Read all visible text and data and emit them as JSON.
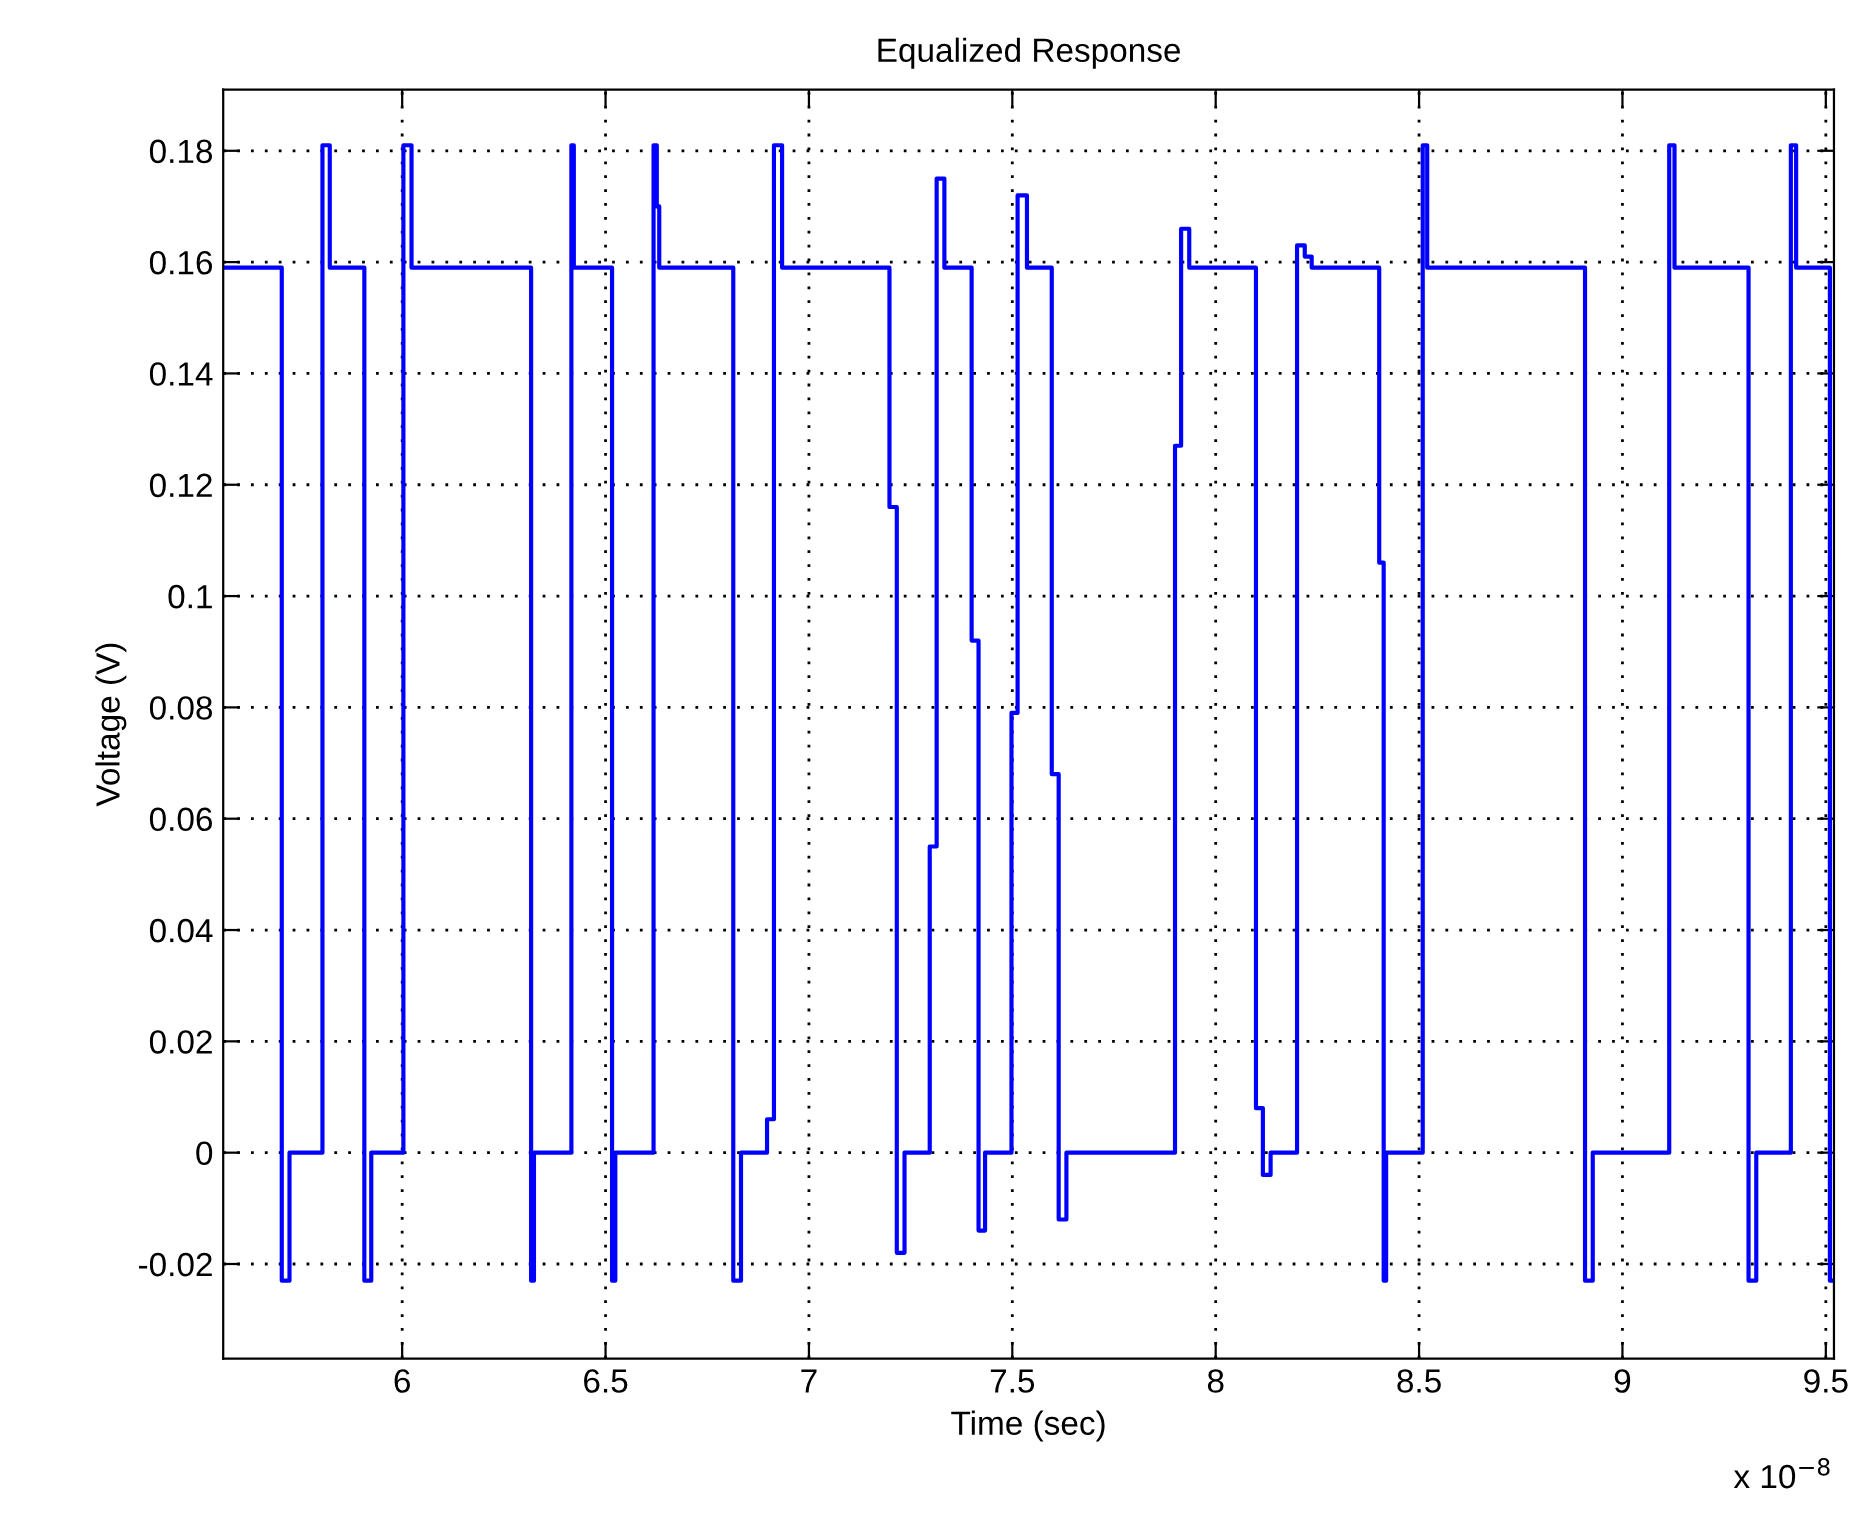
{
  "chart_data": {
    "type": "step",
    "title": "Equalized Response",
    "xlabel": "Time (sec)",
    "ylabel": "Voltage (V)",
    "annotations": [
      "x 10$^{−8}$"
    ],
    "x": [
      5.56,
      5.704,
      5.723,
      5.804,
      5.822,
      5.907,
      5.924,
      6.003,
      6.023,
      6.317,
      6.324,
      6.416,
      6.422,
      6.516,
      6.524,
      6.618,
      6.626,
      6.632,
      6.814,
      6.833,
      6.897,
      6.914,
      6.934,
      7.198,
      7.216,
      7.235,
      7.297,
      7.314,
      7.333,
      7.4,
      7.417,
      7.433,
      7.498,
      7.513,
      7.536,
      7.597,
      7.614,
      7.633,
      7.9,
      7.915,
      7.935,
      8.099,
      8.116,
      8.135,
      8.2,
      8.219,
      8.236,
      8.402,
      8.413,
      8.419,
      8.509,
      8.52,
      8.908,
      8.927,
      9.115,
      9.128,
      9.31,
      9.329,
      9.414,
      9.427,
      9.51,
      9.52
    ],
    "series": [
      {
        "color": "#0000ff",
        "values": [
          0.159,
          -0.023,
          0,
          0.181,
          0.159,
          -0.023,
          0,
          0.181,
          0.159,
          -0.023,
          0,
          0.181,
          0.159,
          -0.023,
          0,
          0.181,
          0.17,
          0.159,
          -0.023,
          0,
          0.006,
          0.181,
          0.159,
          0.116,
          -0.018,
          0,
          0.055,
          0.175,
          0.159,
          0.092,
          -0.014,
          0,
          0.079,
          0.172,
          0.159,
          0.068,
          -0.012,
          0,
          0.127,
          0.166,
          0.159,
          0.008,
          -0.004,
          0,
          0.163,
          0.161,
          0.159,
          0.106,
          -0.023,
          0,
          0.181,
          0.159,
          -0.023,
          0,
          0.181,
          0.159,
          -0.023,
          0,
          0.181,
          0.159,
          -0.023,
          -0.023
        ]
      }
    ],
    "xlim": [
      5.56,
      9.52
    ],
    "ylim": [
      -0.037,
      0.191
    ],
    "xticks": [
      6,
      6.5,
      7,
      7.5,
      8,
      8.5,
      9,
      9.5
    ],
    "yticks": [
      -0.02,
      0,
      0.02,
      0.04,
      0.06,
      0.08,
      0.1,
      0.12,
      0.14,
      0.16,
      0.18
    ],
    "grid": true,
    "marker": "none",
    "line_style": "solid"
  }
}
